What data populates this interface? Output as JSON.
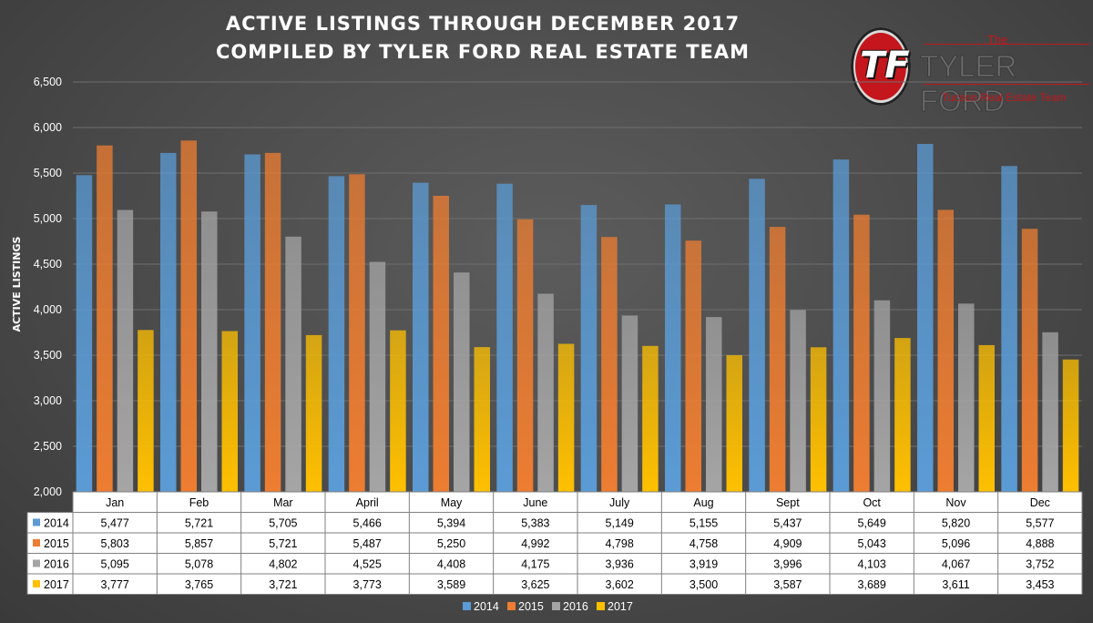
{
  "title_line1": "ACTIVE LISTINGS THROUGH DECEMBER 2017",
  "title_line2": "COMPILED BY TYLER FORD REAL ESTATE TEAM",
  "logo": {
    "monogram": "TF",
    "the": "The",
    "name": "TYLER FORD",
    "tagline": "Tucson Real Estate Team"
  },
  "chart_data": {
    "type": "bar",
    "title": "ACTIVE LISTINGS THROUGH DECEMBER 2017",
    "subtitle": "COMPILED BY TYLER FORD REAL ESTATE TEAM",
    "ylabel": "ACTIVE LISTINGS",
    "xlabel": "",
    "ylim": [
      2000,
      6500
    ],
    "yticks": [
      "2,000",
      "2,500",
      "3,000",
      "3,500",
      "4,000",
      "4,500",
      "5,000",
      "5,500",
      "6,000",
      "6,500"
    ],
    "ytick_values": [
      2000,
      2500,
      3000,
      3500,
      4000,
      4500,
      5000,
      5500,
      6000,
      6500
    ],
    "grid": true,
    "legend_position": "bottom",
    "data_table": true,
    "categories": [
      "Jan",
      "Feb",
      "Mar",
      "April",
      "May",
      "June",
      "July",
      "Aug",
      "Sept",
      "Oct",
      "Nov",
      "Dec"
    ],
    "series": [
      {
        "name": "2014",
        "color": "#5b9bd5",
        "values": [
          5477,
          5721,
          5705,
          5466,
          5394,
          5383,
          5149,
          5155,
          5437,
          5649,
          5820,
          5577
        ],
        "labels": [
          "5,477",
          "5,721",
          "5,705",
          "5,466",
          "5,394",
          "5,383",
          "5,149",
          "5,155",
          "5,437",
          "5,649",
          "5,820",
          "5,577"
        ]
      },
      {
        "name": "2015",
        "color": "#ed7d31",
        "values": [
          5803,
          5857,
          5721,
          5487,
          5250,
          4992,
          4798,
          4758,
          4909,
          5043,
          5096,
          4888
        ],
        "labels": [
          "5,803",
          "5,857",
          "5,721",
          "5,487",
          "5,250",
          "4,992",
          "4,798",
          "4,758",
          "4,909",
          "5,043",
          "5,096",
          "4,888"
        ]
      },
      {
        "name": "2016",
        "color": "#a5a5a5",
        "values": [
          5095,
          5078,
          4802,
          4525,
          4408,
          4175,
          3936,
          3919,
          3996,
          4103,
          4067,
          3752
        ],
        "labels": [
          "5,095",
          "5,078",
          "4,802",
          "4,525",
          "4,408",
          "4,175",
          "3,936",
          "3,919",
          "3,996",
          "4,103",
          "4,067",
          "3,752"
        ]
      },
      {
        "name": "2017",
        "color": "#ffc000",
        "values": [
          3777,
          3765,
          3721,
          3773,
          3589,
          3625,
          3602,
          3500,
          3587,
          3689,
          3611,
          3453
        ],
        "labels": [
          "3,777",
          "3,765",
          "3,721",
          "3,773",
          "3,589",
          "3,625",
          "3,602",
          "3,500",
          "3,587",
          "3,689",
          "3,611",
          "3,453"
        ]
      }
    ]
  }
}
